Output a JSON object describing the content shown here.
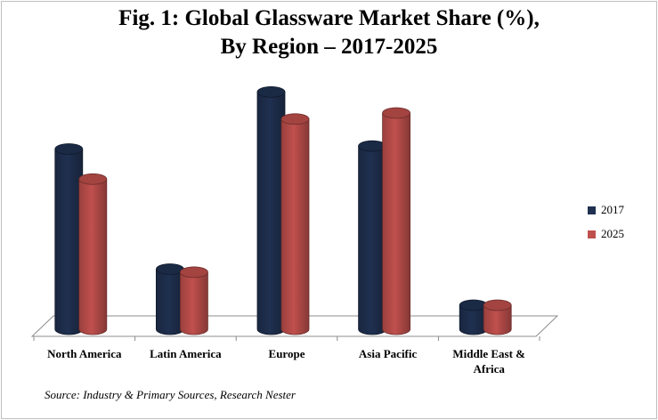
{
  "title_line1": "Fig. 1: Global Glassware Market Share (%),",
  "title_line2": "By Region – 2017-2025",
  "source": "Source: Industry & Primary Sources, Research Nester",
  "colors": {
    "s2017": "#1f3050",
    "s2025": "#c0504d"
  },
  "chart_data": {
    "type": "bar",
    "title": "Fig. 1: Global Glassware Market Share (%), By Region – 2017-2025",
    "categories": [
      "North America",
      "Latin America",
      "Europe",
      "Asia Pacific",
      "Middle East & Africa"
    ],
    "series": [
      {
        "name": "2017",
        "values": [
          30,
          10,
          39.5,
          30.5,
          4
        ]
      },
      {
        "name": "2025",
        "values": [
          25,
          9.5,
          35,
          36,
          4
        ]
      }
    ],
    "ylim": [
      0,
      40
    ],
    "xlabel": "",
    "ylabel": "",
    "grid": false,
    "legend": "right"
  }
}
